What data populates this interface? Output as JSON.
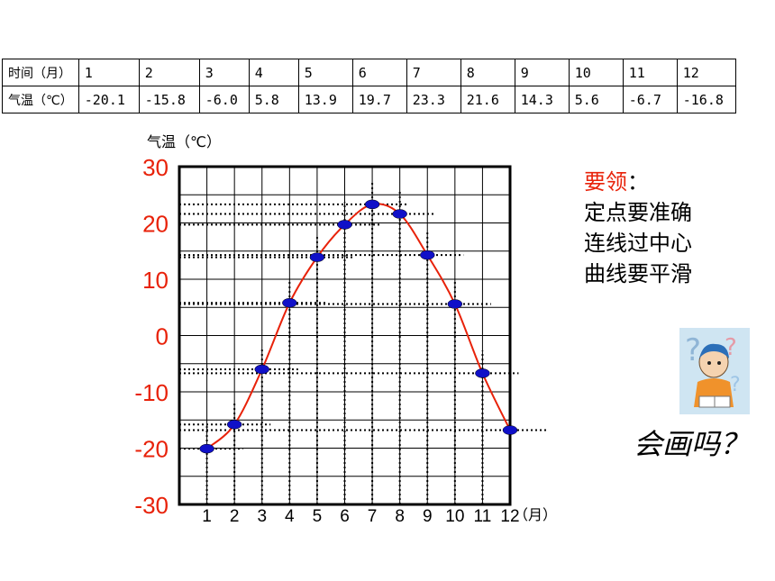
{
  "table": {
    "month_header": "时间（月）",
    "temp_header": "气温（℃）",
    "months": [
      "1",
      "2",
      "3",
      "4",
      "5",
      "6",
      "7",
      "8",
      "9",
      "10",
      "11",
      "12"
    ],
    "temps": [
      "-20.1",
      "-15.8",
      "-6.0",
      "5.8",
      "13.9",
      "19.7",
      "23.3",
      "21.6",
      "14.3",
      "5.6",
      "-6.7",
      "-16.8"
    ]
  },
  "chart_data": {
    "type": "line",
    "ylabel": "气温（℃）",
    "xlabel": "（月）",
    "x": [
      1,
      2,
      3,
      4,
      5,
      6,
      7,
      8,
      9,
      10,
      11,
      12
    ],
    "series": [
      {
        "values": [
          -20.1,
          -15.8,
          -6.0,
          5.8,
          13.9,
          19.7,
          23.3,
          21.6,
          14.3,
          5.6,
          -6.7,
          -16.8
        ]
      }
    ],
    "ylim": [
      -30,
      30
    ],
    "yticks": [
      "30",
      "20",
      "10",
      "0",
      "-10",
      "-20",
      "-30"
    ],
    "xticks": [
      "1",
      "2",
      "3",
      "4",
      "5",
      "6",
      "7",
      "8",
      "9",
      "10",
      "11",
      "12"
    ],
    "grid": true,
    "colors": {
      "line": "#e8220a",
      "points": "#1010c8",
      "ticks": "#e8220a"
    }
  },
  "notes": {
    "title": "要领",
    "colon": "：",
    "lines": [
      "定点要准确",
      "连线过中心",
      "曲线要平滑"
    ]
  },
  "question": "会画吗？",
  "illustration": "thinking-child-icon"
}
